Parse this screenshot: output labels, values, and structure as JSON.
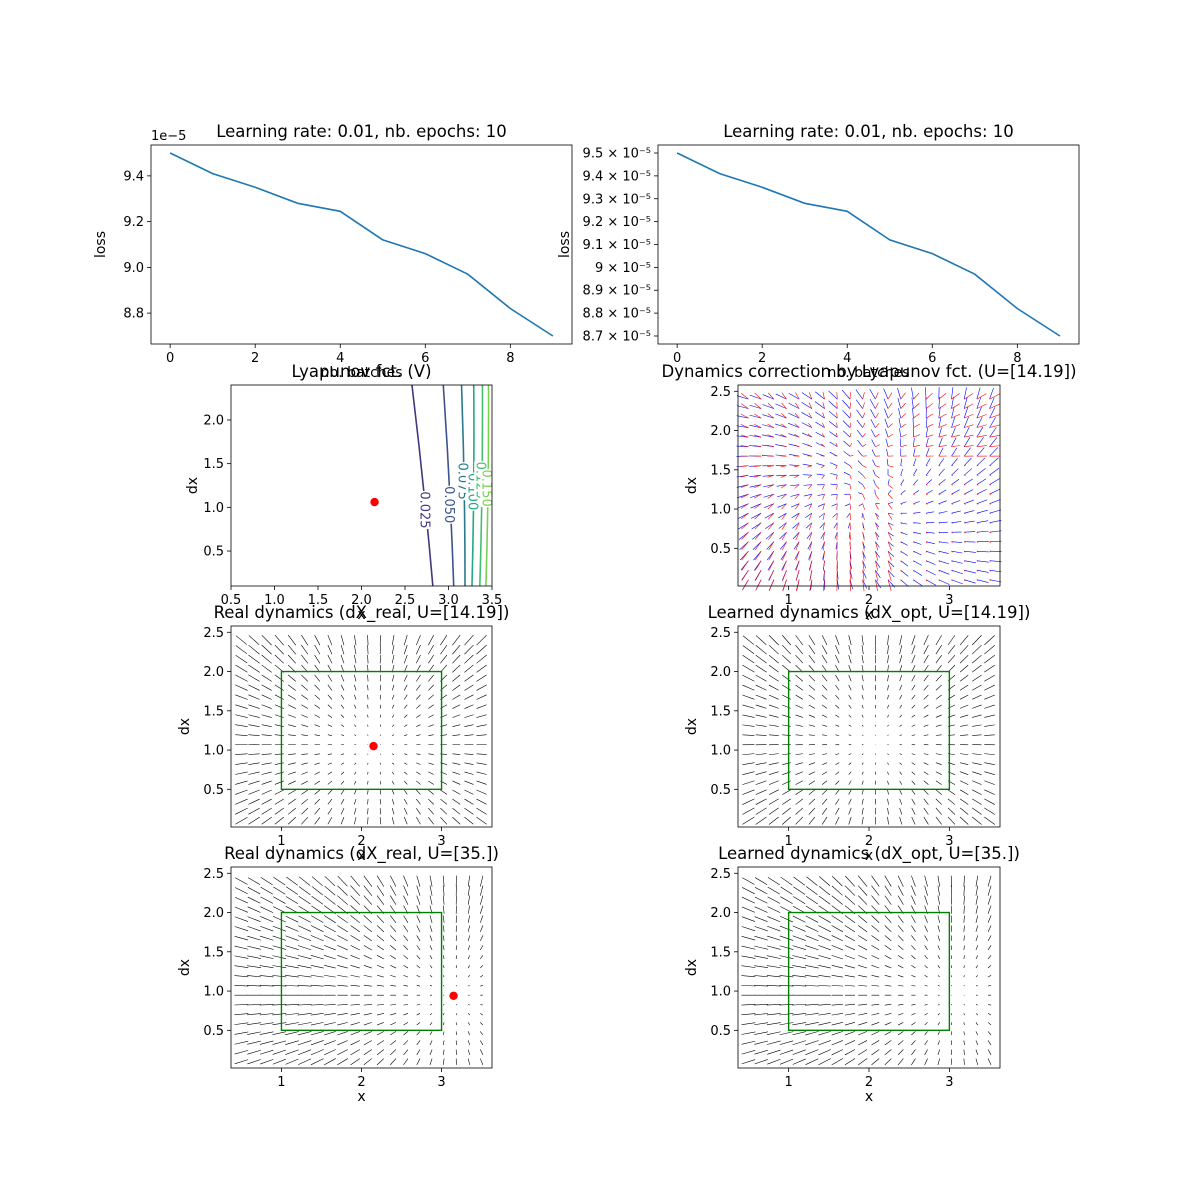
{
  "chart_data": [
    {
      "id": "loss-linear",
      "type": "line",
      "title": "Learning rate: 0.01, nb. epochs: 10",
      "xlabel": "nb. batches",
      "ylabel": "loss",
      "offset_label": "1e−5",
      "xlim": [
        -0.45,
        9.45
      ],
      "ylim": [
        8.665,
        9.535
      ],
      "xticks": [
        0,
        2,
        4,
        6,
        8
      ],
      "yticks": [
        8.8,
        9.0,
        9.2,
        9.4
      ],
      "series": [
        {
          "x": [
            0,
            1,
            2,
            3,
            4,
            5,
            6,
            7,
            8,
            9
          ],
          "y": [
            9.5,
            9.41,
            9.35,
            9.28,
            9.245,
            9.12,
            9.06,
            8.97,
            8.82,
            8.7
          ],
          "color": "#1f77b4"
        }
      ]
    },
    {
      "id": "loss-log",
      "type": "line",
      "title": "Learning rate: 0.01, nb. epochs: 10",
      "xlabel": "nb. batches",
      "ylabel": "loss",
      "yscale": "log",
      "xlim": [
        -0.45,
        9.45
      ],
      "ylim": [
        8.665,
        9.535
      ],
      "xticks": [
        0,
        2,
        4,
        6,
        8
      ],
      "yticks": [
        8.7,
        8.8,
        8.9,
        9.0,
        9.1,
        9.2,
        9.3,
        9.4,
        9.5
      ],
      "ytick_labels": [
        "8.7 × 10⁻⁵",
        "8.8 × 10⁻⁵",
        "8.9 × 10⁻⁵",
        "9 × 10⁻⁵",
        "9.1 × 10⁻⁵",
        "9.2 × 10⁻⁵",
        "9.3 × 10⁻⁵",
        "9.4 × 10⁻⁵",
        "9.5 × 10⁻⁵"
      ],
      "series": [
        {
          "x": [
            0,
            1,
            2,
            3,
            4,
            5,
            6,
            7,
            8,
            9
          ],
          "y": [
            9.5,
            9.41,
            9.35,
            9.28,
            9.245,
            9.12,
            9.06,
            8.97,
            8.82,
            8.7
          ],
          "color": "#1f77b4"
        }
      ]
    },
    {
      "id": "lyapunov",
      "type": "contour",
      "title": "Lyapunov fct. (V)",
      "xlabel": "x",
      "ylabel": "dx",
      "xlim": [
        0.5,
        3.5
      ],
      "ylim": [
        0.1,
        2.4
      ],
      "xticks": [
        0.5,
        1.0,
        1.5,
        2.0,
        2.5,
        3.0,
        3.5
      ],
      "xtick_labels": [
        "0.5",
        "1.0",
        "1.5",
        "2.0",
        "2.5",
        "3.0",
        "3.5"
      ],
      "yticks": [
        0.5,
        1.0,
        1.5,
        2.0
      ],
      "ytick_labels": [
        "0.5",
        "1.0",
        "1.5",
        "2.0"
      ],
      "levels": [
        {
          "value": "0.025",
          "color": "#45377f",
          "x_top": 2.58,
          "x_bottom": 2.82,
          "label_y": 0.97
        },
        {
          "value": "0.050",
          "color": "#3b538b",
          "x_top": 2.94,
          "x_bottom": 3.06,
          "label_y": 1.03
        },
        {
          "value": "0.075",
          "color": "#2a788e",
          "x_top": 3.15,
          "x_bottom": 3.19,
          "label_y": 1.3
        },
        {
          "value": "0.100",
          "color": "#22a884",
          "x_top": 3.29,
          "x_bottom": 3.27,
          "label_y": 1.18
        },
        {
          "value": "0.125",
          "color": "#44bf70",
          "x_top": 3.39,
          "x_bottom": 3.36,
          "label_y": 1.31
        },
        {
          "value": "0.150",
          "color": "#7ad151",
          "x_top": 3.46,
          "x_bottom": 3.43,
          "label_y": 1.22
        }
      ],
      "point": {
        "x": 2.15,
        "y": 1.06,
        "color": "#ff0000"
      }
    },
    {
      "id": "correction",
      "type": "quiver",
      "title": "Dynamics correction by Lyapunov fct. (U=[14.19])",
      "xlabel": "x",
      "ylabel": "dx",
      "xlim": [
        0.37,
        3.63
      ],
      "ylim": [
        0.02,
        2.58
      ],
      "xticks": [
        1,
        2,
        3
      ],
      "yticks": [
        0.5,
        1.0,
        1.5,
        2.0,
        2.5
      ],
      "ytick_labels": [
        "0.5",
        "1.0",
        "1.5",
        "2.0",
        "2.5"
      ],
      "colors": [
        "#0000ff",
        "#ff0000"
      ]
    },
    {
      "id": "real-14",
      "type": "quiver",
      "title": "Real dynamics (dX_real, U=[14.19])",
      "xlabel": "x",
      "ylabel": "dx",
      "xlim": [
        0.37,
        3.63
      ],
      "ylim": [
        0.02,
        2.58
      ],
      "xticks": [
        1,
        2,
        3
      ],
      "yticks": [
        0.5,
        1.0,
        1.5,
        2.0,
        2.5
      ],
      "ytick_labels": [
        "0.5",
        "1.0",
        "1.5",
        "2.0",
        "2.5"
      ],
      "box": {
        "x0": 1,
        "x1": 3,
        "y0": 0.5,
        "y1": 2.0,
        "color": "#008000"
      },
      "point": {
        "x": 2.15,
        "y": 1.05,
        "color": "#ff0000"
      },
      "equilibrium": {
        "x": 2.15,
        "y": 1.05
      }
    },
    {
      "id": "learned-14",
      "type": "quiver",
      "title": "Learned dynamics (dX_opt, U=[14.19])",
      "xlabel": "x",
      "ylabel": "dx",
      "xlim": [
        0.37,
        3.63
      ],
      "ylim": [
        0.02,
        2.58
      ],
      "xticks": [
        1,
        2,
        3
      ],
      "yticks": [
        0.5,
        1.0,
        1.5,
        2.0,
        2.5
      ],
      "ytick_labels": [
        "0.5",
        "1.0",
        "1.5",
        "2.0",
        "2.5"
      ],
      "box": {
        "x0": 1,
        "x1": 3,
        "y0": 0.5,
        "y1": 2.0,
        "color": "#008000"
      },
      "equilibrium": {
        "x": 2.1,
        "y": 1.1
      }
    },
    {
      "id": "real-35",
      "type": "quiver",
      "title": "Real dynamics (dX_real, U=[35.])",
      "xlabel": "x",
      "ylabel": "dx",
      "xlim": [
        0.37,
        3.63
      ],
      "ylim": [
        0.02,
        2.58
      ],
      "xticks": [
        1,
        2,
        3
      ],
      "yticks": [
        0.5,
        1.0,
        1.5,
        2.0,
        2.5
      ],
      "ytick_labels": [
        "0.5",
        "1.0",
        "1.5",
        "2.0",
        "2.5"
      ],
      "box": {
        "x0": 1,
        "x1": 3,
        "y0": 0.5,
        "y1": 2.0,
        "color": "#008000"
      },
      "point": {
        "x": 3.15,
        "y": 0.94,
        "color": "#ff0000"
      },
      "equilibrium": {
        "x": 3.15,
        "y": 0.94
      }
    },
    {
      "id": "learned-35",
      "type": "quiver",
      "title": "Learned dynamics (dX_opt, U=[35.])",
      "xlabel": "x",
      "ylabel": "dx",
      "xlim": [
        0.37,
        3.63
      ],
      "ylim": [
        0.02,
        2.58
      ],
      "xticks": [
        1,
        2,
        3
      ],
      "yticks": [
        0.5,
        1.0,
        1.5,
        2.0,
        2.5
      ],
      "ytick_labels": [
        "0.5",
        "1.0",
        "1.5",
        "2.0",
        "2.5"
      ],
      "box": {
        "x0": 1,
        "x1": 3,
        "y0": 0.5,
        "y1": 2.0,
        "color": "#008000"
      },
      "equilibrium": {
        "x": 3.1,
        "y": 0.95
      }
    }
  ]
}
